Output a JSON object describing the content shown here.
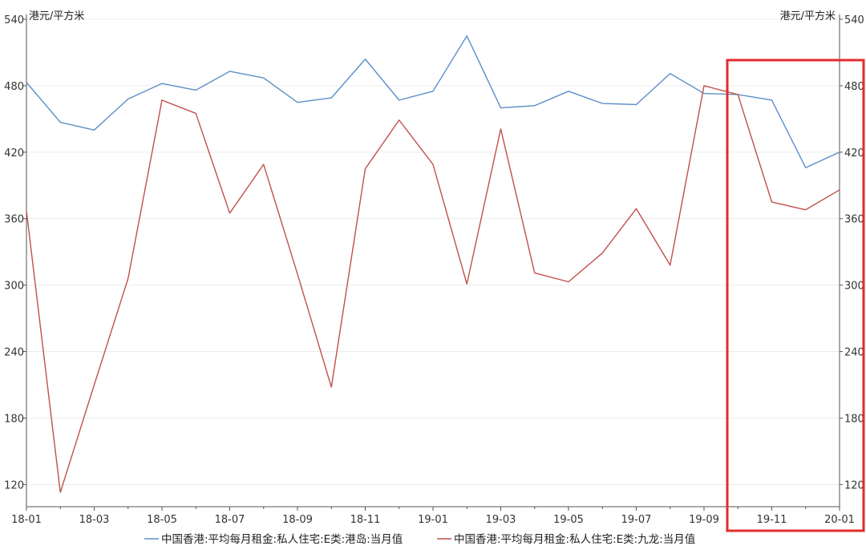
{
  "chart_data": {
    "type": "line",
    "left_unit_label": "港元/平方米",
    "right_unit_label": "港元/平方米",
    "ylim": [
      100,
      540
    ],
    "y_ticks": [
      120,
      180,
      240,
      300,
      360,
      420,
      480,
      540
    ],
    "x": [
      "18-01",
      "18-02",
      "18-03",
      "18-04",
      "18-05",
      "18-06",
      "18-07",
      "18-08",
      "18-09",
      "18-10",
      "18-11",
      "18-12",
      "19-01",
      "19-02",
      "19-03",
      "19-04",
      "19-05",
      "19-06",
      "19-07",
      "19-08",
      "19-09",
      "19-10",
      "19-11",
      "19-12",
      "20-01"
    ],
    "x_tick_labels": [
      "18-01",
      "18-03",
      "18-05",
      "18-07",
      "18-09",
      "18-11",
      "19-01",
      "19-03",
      "19-05",
      "19-07",
      "19-09",
      "19-11",
      "20-01"
    ],
    "grid": true,
    "legend_position": "bottom",
    "series": [
      {
        "name": "中国香港:平均每月租金:私人住宅:E类:港岛:当月值",
        "color": "#5b8fc9",
        "values": [
          483,
          447,
          440,
          468,
          482,
          476,
          493,
          487,
          465,
          469,
          504,
          467,
          475,
          525,
          460,
          462,
          475,
          464,
          463,
          491,
          473,
          472,
          467,
          406,
          420
        ]
      },
      {
        "name": "中国香港:平均每月租金:私人住宅:E类:九龙:当月值",
        "color": "#c0504d",
        "values": [
          367,
          113,
          210,
          306,
          467,
          455,
          365,
          409,
          310,
          208,
          405,
          449,
          409,
          301,
          441,
          311,
          303,
          329,
          369,
          318,
          480,
          472,
          375,
          368,
          386
        ]
      }
    ],
    "highlight_box_color": "#e32b2b"
  }
}
